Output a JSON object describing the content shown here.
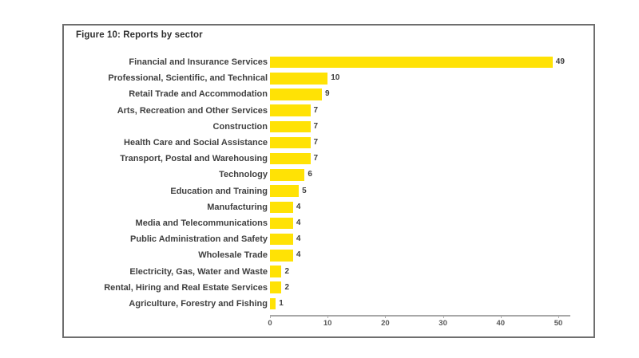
{
  "figure": {
    "title": "Figure 10: Reports by sector"
  },
  "colors": {
    "bar": "#ffe205",
    "label_text": "#3f3f3f",
    "axis_line": "#a8a8a8",
    "tick_text": "#595959",
    "border": "#6e6e6e"
  },
  "chart_data": {
    "type": "bar",
    "orientation": "horizontal",
    "title": "Figure 10: Reports by sector",
    "categories": [
      "Financial and Insurance Services",
      "Professional, Scientific, and Technical",
      "Retail Trade and Accommodation",
      "Arts, Recreation and Other Services",
      "Construction",
      "Health Care and Social Assistance",
      "Transport, Postal and Warehousing",
      "Technology",
      "Education and Training",
      "Manufacturing",
      "Media and Telecommunications",
      "Public Administration and Safety",
      "Wholesale Trade",
      "Electricity, Gas, Water and Waste",
      "Rental, Hiring and Real Estate Services",
      "Agriculture, Forestry and Fishing"
    ],
    "values": [
      49,
      10,
      9,
      7,
      7,
      7,
      7,
      6,
      5,
      4,
      4,
      4,
      4,
      2,
      2,
      1
    ],
    "xlabel": "",
    "ylabel": "",
    "xlim": [
      0,
      50
    ],
    "x_ticks": [
      0,
      10,
      20,
      30,
      40,
      50
    ],
    "data_labels": true,
    "grid": false,
    "legend": false
  }
}
